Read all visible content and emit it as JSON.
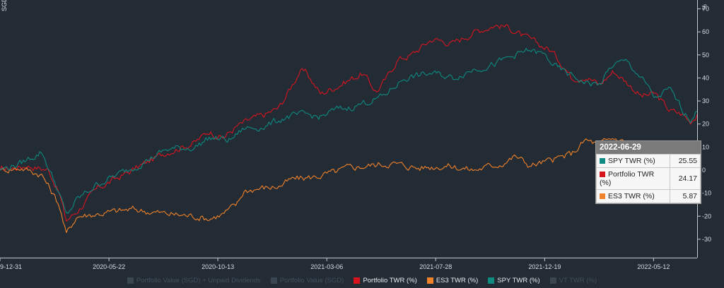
{
  "chart_data": {
    "type": "line",
    "left_axis_label": "SGD",
    "right_axis_label": "%",
    "y_right_ticks": [
      70,
      60,
      50,
      40,
      30,
      20,
      10,
      0,
      -10,
      -20,
      -30
    ],
    "ylim": [
      -38,
      72
    ],
    "x_ticks": [
      "9-12-31",
      "2020-05-22",
      "2020-10-13",
      "2021-03-06",
      "2021-07-28",
      "2021-12-19",
      "2022-05-12"
    ],
    "x_tick_frac": [
      0.0,
      0.1563,
      0.3125,
      0.4688,
      0.625,
      0.7813,
      0.9375
    ],
    "series": [
      {
        "name": "Portfolio TWR (%)",
        "color": "#d7141e",
        "x": [
          0,
          0.04,
          0.07,
          0.085,
          0.095,
          0.11,
          0.14,
          0.19,
          0.24,
          0.28,
          0.3,
          0.32,
          0.34,
          0.36,
          0.38,
          0.4,
          0.41,
          0.43,
          0.44,
          0.46,
          0.48,
          0.5,
          0.52,
          0.54,
          0.555,
          0.57,
          0.59,
          0.62,
          0.65,
          0.68,
          0.71,
          0.73,
          0.75,
          0.77,
          0.79,
          0.81,
          0.82,
          0.84,
          0.86,
          0.88,
          0.9,
          0.92,
          0.94,
          0.96,
          0.98,
          0.99,
          1.0
        ],
        "values": [
          0,
          2,
          0,
          -10,
          -22,
          -18,
          -8,
          0,
          8,
          12,
          17,
          14,
          19,
          22,
          24,
          27,
          32,
          43,
          42,
          33,
          36,
          39,
          42,
          34,
          40,
          48,
          50,
          57,
          55,
          60,
          63,
          62,
          58,
          55,
          52,
          45,
          40,
          41,
          37,
          43,
          38,
          32,
          33,
          26,
          24,
          21,
          24.17
        ]
      },
      {
        "name": "ES3 TWR (%)",
        "color": "#f0822a",
        "x": [
          0,
          0.03,
          0.06,
          0.085,
          0.095,
          0.11,
          0.14,
          0.19,
          0.24,
          0.28,
          0.3,
          0.32,
          0.34,
          0.35,
          0.37,
          0.4,
          0.42,
          0.45,
          0.48,
          0.5,
          0.53,
          0.56,
          0.6,
          0.64,
          0.68,
          0.72,
          0.74,
          0.76,
          0.79,
          0.82,
          0.84,
          0.86,
          0.88,
          0.9,
          0.92,
          0.94,
          0.96,
          0.98,
          1.0
        ],
        "values": [
          0,
          1,
          -2,
          -15,
          -28,
          -20,
          -19,
          -17,
          -19,
          -20,
          -21,
          -19,
          -15,
          -9,
          -8,
          -7,
          -4,
          -3,
          -1,
          1,
          2,
          3,
          1,
          2,
          0,
          3,
          6,
          2,
          4,
          7,
          13,
          11,
          14,
          12,
          10,
          9,
          8,
          6,
          5.87
        ]
      },
      {
        "name": "SPY TWR (%)",
        "color": "#0e8a80",
        "x": [
          0,
          0.03,
          0.06,
          0.085,
          0.095,
          0.11,
          0.14,
          0.19,
          0.24,
          0.28,
          0.3,
          0.33,
          0.35,
          0.38,
          0.41,
          0.44,
          0.46,
          0.48,
          0.5,
          0.52,
          0.55,
          0.58,
          0.62,
          0.65,
          0.68,
          0.71,
          0.74,
          0.76,
          0.78,
          0.8,
          0.82,
          0.84,
          0.86,
          0.88,
          0.9,
          0.92,
          0.94,
          0.96,
          0.98,
          0.99,
          1.0
        ],
        "values": [
          0,
          3,
          8,
          -10,
          -20,
          -13,
          -6,
          1,
          9,
          10,
          14,
          13,
          18,
          19,
          23,
          24,
          23,
          26,
          27,
          29,
          32,
          40,
          42,
          40,
          44,
          46,
          50,
          52,
          50,
          44,
          41,
          38,
          37,
          46,
          47,
          40,
          31,
          35,
          26,
          22,
          25.55
        ]
      }
    ],
    "legend_items": [
      {
        "label": "Portfolio Value (SGD) + Unpaid Dividends",
        "color": "#3a4650",
        "active": false
      },
      {
        "label": "Portfolio Value (SGD)",
        "color": "#3a4650",
        "active": false
      },
      {
        "label": "Portfolio TWR (%)",
        "color": "#d7141e",
        "active": true
      },
      {
        "label": "ES3 TWR (%)",
        "color": "#f0822a",
        "active": true
      },
      {
        "label": "SPY TWR (%)",
        "color": "#0e8a80",
        "active": true
      },
      {
        "label": "VT TWR (%)",
        "color": "#3a4650",
        "active": false
      }
    ],
    "legend_position": "bottom",
    "grid": false,
    "tooltip": {
      "date": "2022-06-29",
      "rows": [
        {
          "label": "SPY TWR (%)",
          "value": "25.55",
          "color": "#0e8a80"
        },
        {
          "label": "Portfolio TWR (%)",
          "value": "24.17",
          "color": "#d7141e"
        },
        {
          "label": "ES3 TWR (%)",
          "value": "5.87",
          "color": "#f0822a"
        }
      ]
    }
  }
}
